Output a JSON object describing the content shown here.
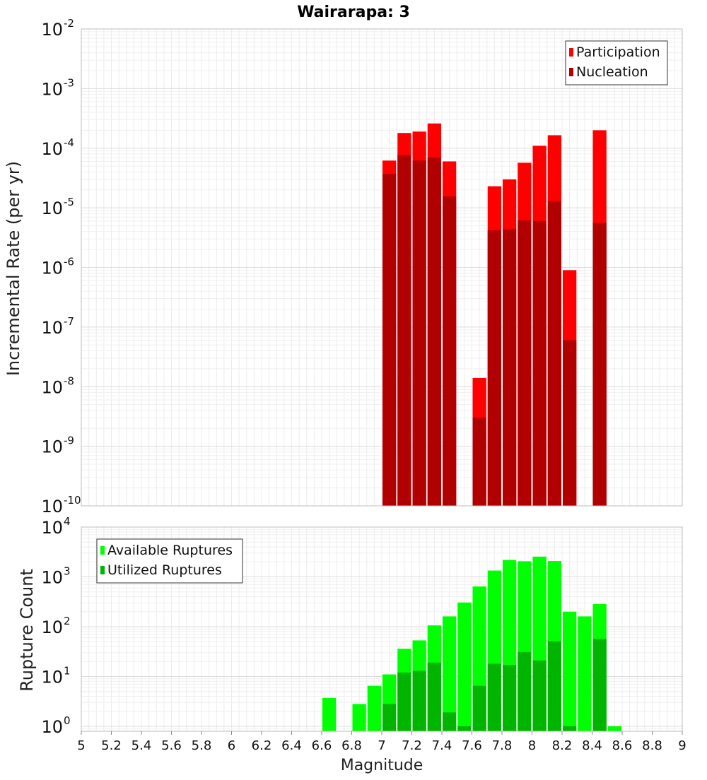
{
  "chart_data": [
    {
      "type": "bar",
      "title": "Wairarapa: 3",
      "xlabel": "",
      "ylabel": "Incremental Rate (per yr)",
      "yscale": "log",
      "ylim_exponents": [
        -10,
        -2
      ],
      "y_tick_exponents": [
        -10,
        -9,
        -8,
        -7,
        -6,
        -5,
        -4,
        -3,
        -2
      ],
      "xlim": [
        5,
        9
      ],
      "legend_position": "top-right",
      "grid": true,
      "bar_width_mag": 0.1,
      "series": [
        {
          "name": "Participation",
          "color": "#ff0000",
          "points": [
            {
              "x": 7.05,
              "y": 6.2e-05
            },
            {
              "x": 7.15,
              "y": 0.00018
            },
            {
              "x": 7.25,
              "y": 0.00019
            },
            {
              "x": 7.35,
              "y": 0.00026
            },
            {
              "x": 7.45,
              "y": 6e-05
            },
            {
              "x": 7.65,
              "y": 1.4e-08
            },
            {
              "x": 7.75,
              "y": 2.3e-05
            },
            {
              "x": 7.85,
              "y": 3e-05
            },
            {
              "x": 7.95,
              "y": 5.7e-05
            },
            {
              "x": 8.05,
              "y": 0.00011
            },
            {
              "x": 8.15,
              "y": 0.000165
            },
            {
              "x": 8.25,
              "y": 9e-07
            },
            {
              "x": 8.45,
              "y": 0.0002
            }
          ]
        },
        {
          "name": "Nucleation",
          "color": "#b00000",
          "points": [
            {
              "x": 7.05,
              "y": 3.7e-05
            },
            {
              "x": 7.15,
              "y": 7.7e-05
            },
            {
              "x": 7.25,
              "y": 6.2e-05
            },
            {
              "x": 7.35,
              "y": 7e-05
            },
            {
              "x": 7.45,
              "y": 1.55e-05
            },
            {
              "x": 7.65,
              "y": 3e-09
            },
            {
              "x": 7.75,
              "y": 4.2e-06
            },
            {
              "x": 7.85,
              "y": 4.4e-06
            },
            {
              "x": 7.95,
              "y": 6.2e-06
            },
            {
              "x": 8.05,
              "y": 6e-06
            },
            {
              "x": 8.15,
              "y": 1.3e-05
            },
            {
              "x": 8.25,
              "y": 6e-08
            },
            {
              "x": 8.45,
              "y": 5.6e-06
            }
          ]
        }
      ]
    },
    {
      "type": "bar",
      "title": "",
      "xlabel": "Magnitude",
      "ylabel": "Rupture Count",
      "yscale": "log",
      "ylim_exponents": [
        -0.1,
        4
      ],
      "y_tick_exponents": [
        0,
        1,
        2,
        3,
        4
      ],
      "xlim": [
        5,
        9
      ],
      "x_ticks": [
        "5",
        "5.2",
        "5.4",
        "5.6",
        "5.8",
        "6",
        "6.2",
        "6.4",
        "6.6",
        "6.8",
        "7",
        "7.2",
        "7.4",
        "7.6",
        "7.8",
        "8",
        "8.2",
        "8.4",
        "8.6",
        "8.8",
        "9"
      ],
      "legend_position": "top-left",
      "grid": true,
      "bar_width_mag": 0.1,
      "series": [
        {
          "name": "Available Ruptures",
          "color": "#00ff00",
          "points": [
            {
              "x": 6.65,
              "y": 3.7
            },
            {
              "x": 6.85,
              "y": 2.8
            },
            {
              "x": 6.95,
              "y": 6.5
            },
            {
              "x": 7.05,
              "y": 11
            },
            {
              "x": 7.15,
              "y": 36
            },
            {
              "x": 7.25,
              "y": 53
            },
            {
              "x": 7.35,
              "y": 106
            },
            {
              "x": 7.45,
              "y": 161
            },
            {
              "x": 7.55,
              "y": 306
            },
            {
              "x": 7.65,
              "y": 641
            },
            {
              "x": 7.75,
              "y": 1340
            },
            {
              "x": 7.85,
              "y": 2190
            },
            {
              "x": 7.95,
              "y": 2060
            },
            {
              "x": 8.05,
              "y": 2550
            },
            {
              "x": 8.15,
              "y": 2080
            },
            {
              "x": 8.25,
              "y": 200
            },
            {
              "x": 8.35,
              "y": 161
            },
            {
              "x": 8.45,
              "y": 284
            },
            {
              "x": 8.55,
              "y": 1
            }
          ]
        },
        {
          "name": "Utilized Ruptures",
          "color": "#00b400",
          "points": [
            {
              "x": 7.05,
              "y": 2.8
            },
            {
              "x": 7.15,
              "y": 12
            },
            {
              "x": 7.25,
              "y": 13
            },
            {
              "x": 7.35,
              "y": 19
            },
            {
              "x": 7.45,
              "y": 1.9
            },
            {
              "x": 7.55,
              "y": 1
            },
            {
              "x": 7.65,
              "y": 6.5
            },
            {
              "x": 7.75,
              "y": 18
            },
            {
              "x": 7.85,
              "y": 17
            },
            {
              "x": 7.95,
              "y": 31
            },
            {
              "x": 8.05,
              "y": 21
            },
            {
              "x": 8.15,
              "y": 51
            },
            {
              "x": 8.25,
              "y": 1
            },
            {
              "x": 8.45,
              "y": 57
            }
          ]
        }
      ]
    }
  ]
}
